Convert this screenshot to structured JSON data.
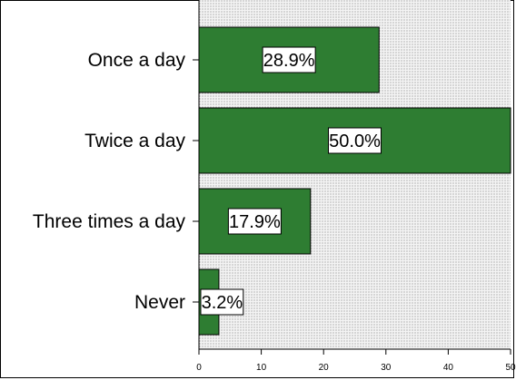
{
  "chart_data": {
    "type": "bar",
    "orientation": "horizontal",
    "categories": [
      "Once a day",
      "Twice a day",
      "Three times a day",
      "Never"
    ],
    "values": [
      28.9,
      50.0,
      17.9,
      3.2
    ],
    "value_labels": [
      "28.9%",
      "50.0%",
      "17.9%",
      "3.2%"
    ],
    "xlim": [
      0,
      50
    ],
    "xticks": [
      0,
      10,
      20,
      30,
      40,
      50
    ],
    "title": "",
    "xlabel": "",
    "ylabel": "",
    "grid": false,
    "colors": {
      "bar": "#2e7d32",
      "bar_edge": "#000000",
      "plot_background": "#f4f4f4",
      "dot_pattern": "#8a8a8a",
      "label_box": "#ffffff"
    }
  }
}
